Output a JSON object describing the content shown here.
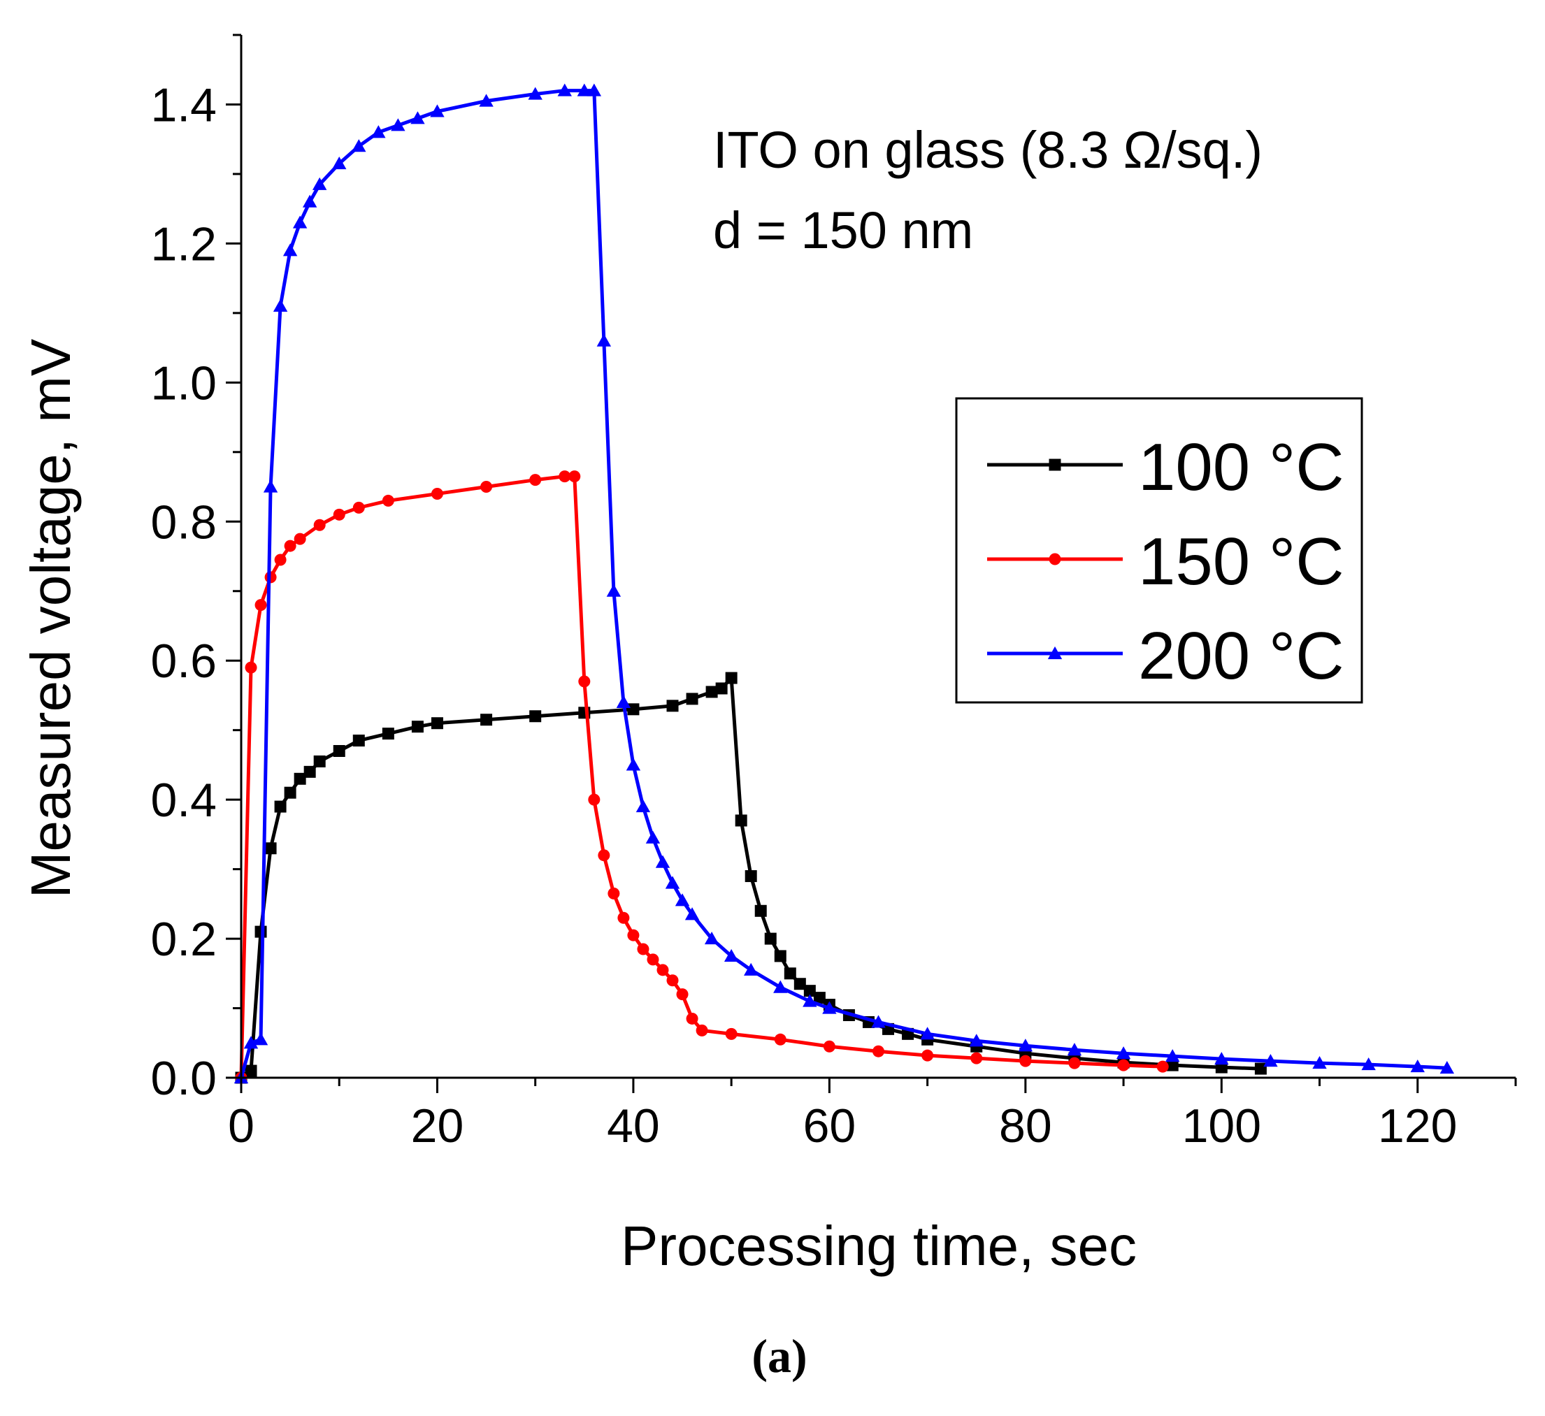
{
  "chart_data": {
    "type": "line",
    "title": "",
    "annotation_lines": [
      "ITO on glass (8.3 Ω/sq.)",
      "d = 150 nm"
    ],
    "xlabel": "Processing time, sec",
    "ylabel": "Measured voltage, mV",
    "xlim": [
      0,
      130
    ],
    "ylim": [
      0,
      1.5
    ],
    "xticks": [
      0,
      20,
      40,
      60,
      80,
      100,
      120
    ],
    "xtick_labels": [
      "0",
      "20",
      "40",
      "60",
      "80",
      "100",
      "120"
    ],
    "yticks": [
      0.0,
      0.2,
      0.4,
      0.6,
      0.8,
      1.0,
      1.2,
      1.4
    ],
    "ytick_labels": [
      "0.0",
      "0.2",
      "0.4",
      "0.6",
      "0.8",
      "1.0",
      "1.2",
      "1.4"
    ],
    "grid": false,
    "legend_position": "right",
    "caption": "(a)",
    "series": [
      {
        "name": "100 °C",
        "color": "#000000",
        "marker": "square",
        "x": [
          0,
          1,
          2,
          3,
          4,
          5,
          6,
          7,
          8,
          10,
          12,
          15,
          18,
          20,
          25,
          30,
          35,
          40,
          44,
          46,
          48,
          49,
          50,
          51,
          52,
          53,
          54,
          55,
          56,
          57,
          58,
          59,
          60,
          62,
          64,
          66,
          68,
          70,
          75,
          80,
          85,
          90,
          95,
          100,
          104
        ],
        "y": [
          0.0,
          0.01,
          0.21,
          0.33,
          0.39,
          0.41,
          0.43,
          0.44,
          0.455,
          0.47,
          0.485,
          0.495,
          0.505,
          0.51,
          0.515,
          0.52,
          0.525,
          0.53,
          0.535,
          0.545,
          0.555,
          0.56,
          0.575,
          0.37,
          0.29,
          0.24,
          0.2,
          0.175,
          0.15,
          0.135,
          0.125,
          0.115,
          0.105,
          0.09,
          0.08,
          0.07,
          0.063,
          0.055,
          0.045,
          0.035,
          0.028,
          0.022,
          0.018,
          0.015,
          0.013
        ]
      },
      {
        "name": "150 °C",
        "color": "#ff0000",
        "marker": "circle",
        "x": [
          0,
          1,
          2,
          3,
          4,
          5,
          6,
          8,
          10,
          12,
          15,
          20,
          25,
          30,
          33,
          34,
          35,
          36,
          37,
          38,
          39,
          40,
          41,
          42,
          43,
          44,
          45,
          46,
          47,
          50,
          55,
          60,
          65,
          70,
          75,
          80,
          85,
          90,
          94
        ],
        "y": [
          0.0,
          0.59,
          0.68,
          0.72,
          0.745,
          0.765,
          0.775,
          0.795,
          0.81,
          0.82,
          0.83,
          0.84,
          0.85,
          0.86,
          0.865,
          0.865,
          0.57,
          0.4,
          0.32,
          0.265,
          0.23,
          0.205,
          0.185,
          0.17,
          0.155,
          0.14,
          0.12,
          0.085,
          0.068,
          0.063,
          0.055,
          0.045,
          0.038,
          0.032,
          0.028,
          0.024,
          0.021,
          0.018,
          0.016
        ]
      },
      {
        "name": "200 °C",
        "color": "#0000ff",
        "marker": "triangle",
        "x": [
          0,
          1,
          2,
          3,
          4,
          5,
          6,
          7,
          8,
          10,
          12,
          14,
          16,
          18,
          20,
          25,
          30,
          33,
          35,
          36,
          37,
          38,
          39,
          40,
          41,
          42,
          43,
          44,
          45,
          46,
          48,
          50,
          52,
          55,
          58,
          60,
          65,
          70,
          75,
          80,
          85,
          90,
          95,
          100,
          105,
          110,
          115,
          120,
          123
        ],
        "y": [
          0.0,
          0.05,
          0.055,
          0.85,
          1.11,
          1.19,
          1.23,
          1.26,
          1.285,
          1.315,
          1.34,
          1.36,
          1.37,
          1.38,
          1.39,
          1.405,
          1.415,
          1.42,
          1.42,
          1.42,
          1.06,
          0.7,
          0.54,
          0.45,
          0.39,
          0.345,
          0.31,
          0.28,
          0.255,
          0.235,
          0.2,
          0.175,
          0.155,
          0.13,
          0.11,
          0.1,
          0.08,
          0.063,
          0.053,
          0.046,
          0.04,
          0.035,
          0.031,
          0.027,
          0.024,
          0.021,
          0.019,
          0.016,
          0.014
        ]
      }
    ]
  }
}
